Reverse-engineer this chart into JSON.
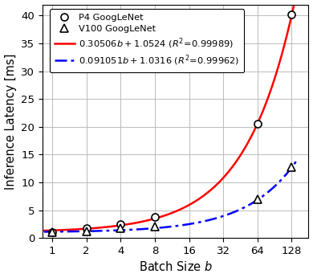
{
  "p4_x": [
    1,
    2,
    4,
    8,
    64,
    128
  ],
  "p4_y": [
    1.1,
    1.7,
    2.5,
    3.8,
    20.5,
    40.2
  ],
  "v100_x": [
    1,
    2,
    4,
    8,
    64,
    128
  ],
  "v100_y": [
    1.0,
    1.2,
    1.7,
    2.1,
    6.9,
    12.8
  ],
  "p4_fit_a": 0.30506,
  "p4_fit_b": 1.0524,
  "v100_fit_a": 0.091051,
  "v100_fit_b": 1.0316,
  "xlabel": "Batch Size $b$",
  "ylabel": "Inference Latency [ms]",
  "xlim_log": [
    0.82,
    180
  ],
  "ylim": [
    0,
    42
  ],
  "yticks": [
    0,
    5,
    10,
    15,
    20,
    25,
    30,
    35,
    40
  ],
  "xticks": [
    1,
    2,
    4,
    8,
    16,
    32,
    64,
    128
  ],
  "p4_color": "#FF0000",
  "v100_color": "#0000FF",
  "background_color": "#FFFFFF",
  "grid_color": "#BBBBBB",
  "legend_p4": "P4 GoogLeNet",
  "legend_v100": "V100 GoogLeNet",
  "p4_eq": "$0.30506b + 1.0524\\ (R^2\\!=\\!0.99989)$",
  "v100_eq": "$0.091051b + 1.0316\\ (R^2\\!=\\!0.99962)$"
}
